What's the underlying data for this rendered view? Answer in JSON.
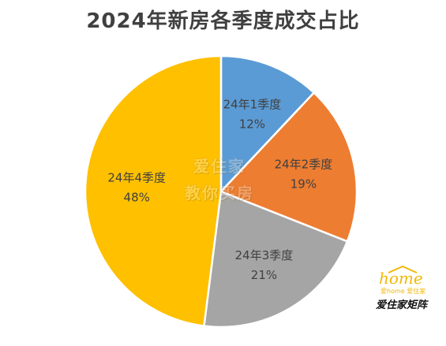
{
  "chart_data": {
    "type": "pie",
    "title": "2024年新房各季度成交占比",
    "slices": [
      {
        "label": "24年1季度",
        "value": 12,
        "value_label": "12%",
        "color": "#5B9BD5"
      },
      {
        "label": "24年2季度",
        "value": 19,
        "value_label": "19%",
        "color": "#ED7D31"
      },
      {
        "label": "24年3季度",
        "value": 21,
        "value_label": "21%",
        "color": "#A5A5A5"
      },
      {
        "label": "24年4季度",
        "value": 48,
        "value_label": "48%",
        "color": "#FFC000"
      }
    ],
    "start_angle": "12 o'clock",
    "direction": "clockwise",
    "legend": "none"
  },
  "watermark": {
    "line1": "爱住家",
    "line2": "教你买房"
  },
  "logo": {
    "word": "home",
    "subtitle": "爱home 爱住家",
    "signature": "爱住家矩阵"
  }
}
